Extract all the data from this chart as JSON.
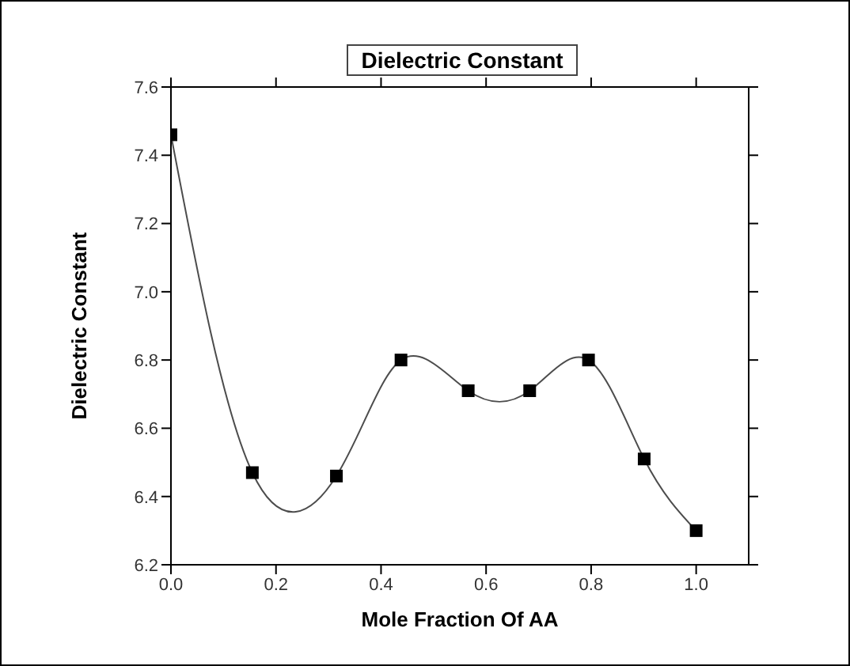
{
  "chart_data": {
    "type": "line",
    "title": "Dielectric Constant",
    "xlabel": "Mole Fraction Of AA",
    "ylabel": "Dielectric Constant",
    "x": [
      0,
      0.155,
      0.315,
      0.438,
      0.566,
      0.683,
      0.795,
      0.901,
      1.0
    ],
    "series": [
      {
        "color": "#000000",
        "values": [
          7.46,
          6.47,
          6.46,
          6.8,
          6.71,
          6.71,
          6.8,
          6.51,
          6.3
        ]
      }
    ],
    "xlim": [
      0,
      1.1
    ],
    "xticks": [
      {
        "value": 0,
        "label": "0.0"
      },
      0.2,
      0.4,
      0.6,
      0.8,
      {
        "value": 1,
        "label": "1.0"
      }
    ],
    "ylim": [
      6.2,
      7.6
    ],
    "yticks": [
      6.2,
      6.4,
      6.6,
      6.8,
      {
        "value": 7,
        "label": "7.0"
      },
      7.2,
      7.4,
      7.6
    ],
    "marker": "square",
    "line_style": "solid",
    "grid": false
  }
}
